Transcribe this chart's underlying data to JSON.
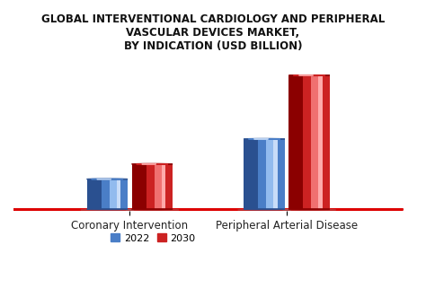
{
  "title": "GLOBAL INTERVENTIONAL CARDIOLOGY AND PERIPHERAL\nVASCULAR DEVICES MARKET,\nBY INDICATION (USD BILLION)",
  "categories": [
    "Coronary Intervention",
    "Peripheral Arterial Disease"
  ],
  "series": [
    {
      "label": "2022",
      "values": [
        1.8,
        4.2
      ],
      "color_main": "#4a7ec7",
      "color_light": "#92bbee",
      "color_dark": "#2a5090",
      "color_highlight": "#c8dcf8"
    },
    {
      "label": "2030",
      "values": [
        2.7,
        8.0
      ],
      "color_main": "#cc2222",
      "color_light": "#f07070",
      "color_dark": "#8b0000",
      "color_highlight": "#ffaaaa"
    }
  ],
  "background_color": "#ffffff",
  "floor_color": "#dd0000",
  "floor_fill": "#fde8e8",
  "title_fontsize": 8.5,
  "legend_fontsize": 8,
  "xlabel_fontsize": 8.5,
  "bar_width": 0.13,
  "group_centers": [
    0.25,
    0.75
  ]
}
